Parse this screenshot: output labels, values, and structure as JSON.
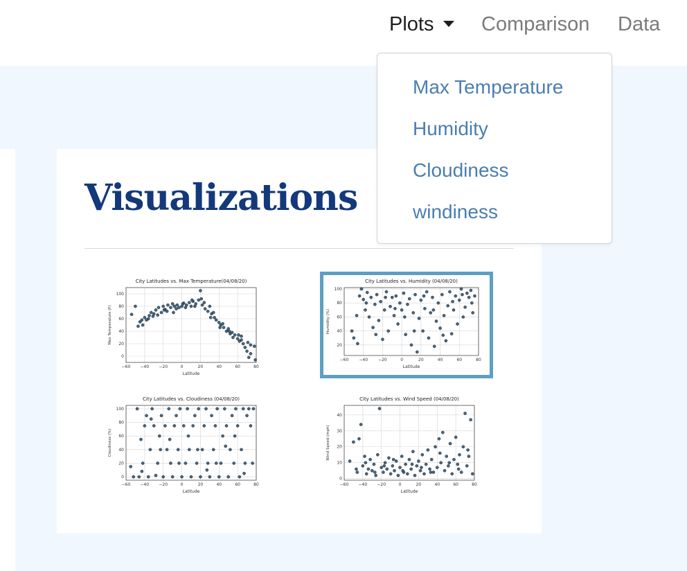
{
  "navbar": {
    "plots_label": "Plots",
    "comparison_label": "Comparison",
    "data_label": "Data"
  },
  "dropdown": {
    "items": [
      "Max Temperature",
      "Humidity",
      "Cloudiness",
      "windiness"
    ]
  },
  "main": {
    "title": "Visualizations"
  },
  "colors": {
    "title": "#14397a",
    "link": "#4a7eb0",
    "highlight": "#5d9fc4",
    "background": "#f1f7fe",
    "marker": "#2f5676"
  },
  "chart_data": [
    {
      "type": "scatter",
      "title": "City Latitudes vs. Max Temperature(04/08/20)",
      "xlabel": "Latitude",
      "ylabel": "Max Temperature (F)",
      "xlim": [
        -60,
        80
      ],
      "ylim": [
        -10,
        110
      ],
      "xticks": [
        -60,
        -40,
        -20,
        0,
        20,
        40,
        60,
        80
      ],
      "yticks": [
        0,
        20,
        40,
        60,
        80,
        100
      ],
      "grid": true,
      "points": [
        [
          -54,
          67
        ],
        [
          -50,
          80
        ],
        [
          -45,
          55
        ],
        [
          -42,
          50
        ],
        [
          -40,
          62
        ],
        [
          -38,
          58
        ],
        [
          -35,
          65
        ],
        [
          -33,
          70
        ],
        [
          -30,
          68
        ],
        [
          -28,
          74
        ],
        [
          -25,
          78
        ],
        [
          -22,
          70
        ],
        [
          -20,
          80
        ],
        [
          -18,
          75
        ],
        [
          -15,
          82
        ],
        [
          -12,
          78
        ],
        [
          -10,
          84
        ],
        [
          -8,
          80
        ],
        [
          -5,
          82
        ],
        [
          -3,
          78
        ],
        [
          0,
          80
        ],
        [
          2,
          85
        ],
        [
          5,
          82
        ],
        [
          8,
          86
        ],
        [
          10,
          80
        ],
        [
          12,
          88
        ],
        [
          15,
          84
        ],
        [
          18,
          90
        ],
        [
          20,
          105
        ],
        [
          22,
          82
        ],
        [
          25,
          76
        ],
        [
          28,
          72
        ],
        [
          30,
          80
        ],
        [
          32,
          68
        ],
        [
          35,
          62
        ],
        [
          37,
          58
        ],
        [
          40,
          54
        ],
        [
          42,
          50
        ],
        [
          45,
          46
        ],
        [
          48,
          40
        ],
        [
          50,
          44
        ],
        [
          52,
          36
        ],
        [
          55,
          30
        ],
        [
          57,
          34
        ],
        [
          60,
          28
        ],
        [
          62,
          24
        ],
        [
          64,
          32
        ],
        [
          66,
          20
        ],
        [
          68,
          14
        ],
        [
          70,
          8
        ],
        [
          72,
          -2
        ],
        [
          74,
          4
        ],
        [
          78,
          16
        ],
        [
          -47,
          48
        ],
        [
          -36,
          60
        ],
        [
          -26,
          66
        ],
        [
          -16,
          72
        ],
        [
          -6,
          76
        ],
        [
          4,
          78
        ],
        [
          14,
          80
        ],
        [
          24,
          86
        ],
        [
          34,
          70
        ],
        [
          44,
          52
        ],
        [
          54,
          38
        ],
        [
          64,
          26
        ],
        [
          74,
          18
        ],
        [
          -43,
          58
        ],
        [
          -31,
          64
        ],
        [
          -19,
          74
        ],
        [
          -9,
          70
        ],
        [
          1,
          84
        ],
        [
          11,
          90
        ],
        [
          21,
          92
        ],
        [
          31,
          62
        ],
        [
          41,
          46
        ],
        [
          51,
          40
        ],
        [
          61,
          34
        ],
        [
          71,
          22
        ],
        [
          79,
          -6
        ]
      ]
    },
    {
      "type": "scatter",
      "title": "City Latitudes vs. Humidity (04/08/20)",
      "xlabel": "Latitude",
      "ylabel": "Humidity (%)",
      "xlim": [
        -60,
        80
      ],
      "ylim": [
        5,
        102
      ],
      "xticks": [
        -60,
        -40,
        -20,
        0,
        20,
        40,
        60,
        80
      ],
      "yticks": [
        20,
        40,
        60,
        80,
        100
      ],
      "grid": true,
      "points": [
        [
          -52,
          40
        ],
        [
          -50,
          30
        ],
        [
          -46,
          22
        ],
        [
          -44,
          90
        ],
        [
          -42,
          100
        ],
        [
          -40,
          85
        ],
        [
          -38,
          70
        ],
        [
          -36,
          95
        ],
        [
          -34,
          60
        ],
        [
          -32,
          88
        ],
        [
          -30,
          45
        ],
        [
          -28,
          78
        ],
        [
          -26,
          92
        ],
        [
          -24,
          55
        ],
        [
          -22,
          82
        ],
        [
          -20,
          28
        ],
        [
          -18,
          70
        ],
        [
          -16,
          96
        ],
        [
          -14,
          40
        ],
        [
          -12,
          75
        ],
        [
          -10,
          88
        ],
        [
          -8,
          62
        ],
        [
          -6,
          90
        ],
        [
          -4,
          50
        ],
        [
          -2,
          80
        ],
        [
          0,
          70
        ],
        [
          2,
          94
        ],
        [
          4,
          35
        ],
        [
          6,
          78
        ],
        [
          8,
          86
        ],
        [
          10,
          20
        ],
        [
          12,
          66
        ],
        [
          14,
          92
        ],
        [
          16,
          10
        ],
        [
          18,
          58
        ],
        [
          20,
          84
        ],
        [
          22,
          40
        ],
        [
          24,
          72
        ],
        [
          26,
          96
        ],
        [
          28,
          30
        ],
        [
          30,
          66
        ],
        [
          32,
          88
        ],
        [
          34,
          18
        ],
        [
          36,
          54
        ],
        [
          38,
          80
        ],
        [
          40,
          44
        ],
        [
          42,
          92
        ],
        [
          44,
          62
        ],
        [
          46,
          26
        ],
        [
          48,
          76
        ],
        [
          50,
          96
        ],
        [
          52,
          36
        ],
        [
          54,
          70
        ],
        [
          56,
          90
        ],
        [
          58,
          50
        ],
        [
          60,
          84
        ],
        [
          62,
          100
        ],
        [
          64,
          60
        ],
        [
          66,
          74
        ],
        [
          68,
          94
        ],
        [
          70,
          88
        ],
        [
          72,
          98
        ],
        [
          74,
          66
        ],
        [
          76,
          90
        ],
        [
          -47,
          62
        ],
        [
          -37,
          80
        ],
        [
          -27,
          35
        ],
        [
          -17,
          88
        ],
        [
          -7,
          72
        ],
        [
          3,
          60
        ],
        [
          13,
          40
        ],
        [
          23,
          90
        ],
        [
          33,
          70
        ],
        [
          43,
          34
        ],
        [
          53,
          82
        ],
        [
          63,
          92
        ],
        [
          73,
          80
        ]
      ]
    },
    {
      "type": "scatter",
      "title": "City Latitudes vs. Cloudiness (04/08/20)",
      "xlabel": "Latitude",
      "ylabel": "Cloudiness (%)",
      "xlim": [
        -60,
        80
      ],
      "ylim": [
        -5,
        105
      ],
      "xticks": [
        -60,
        -40,
        -20,
        0,
        20,
        40,
        60,
        80
      ],
      "yticks": [
        0,
        20,
        40,
        60,
        80,
        100
      ],
      "grid": true,
      "points": [
        [
          -55,
          15
        ],
        [
          -52,
          0
        ],
        [
          -48,
          100
        ],
        [
          -46,
          0
        ],
        [
          -44,
          55
        ],
        [
          -42,
          20
        ],
        [
          -40,
          75
        ],
        [
          -38,
          90
        ],
        [
          -36,
          0
        ],
        [
          -34,
          40
        ],
        [
          -32,
          100
        ],
        [
          -30,
          75
        ],
        [
          -28,
          2
        ],
        [
          -26,
          20
        ],
        [
          -24,
          60
        ],
        [
          -22,
          90
        ],
        [
          -20,
          0
        ],
        [
          -18,
          75
        ],
        [
          -16,
          40
        ],
        [
          -14,
          100
        ],
        [
          -12,
          20
        ],
        [
          -10,
          0
        ],
        [
          -8,
          75
        ],
        [
          -6,
          90
        ],
        [
          -4,
          40
        ],
        [
          -2,
          100
        ],
        [
          0,
          0
        ],
        [
          2,
          75
        ],
        [
          4,
          20
        ],
        [
          6,
          100
        ],
        [
          8,
          40
        ],
        [
          10,
          0
        ],
        [
          12,
          75
        ],
        [
          14,
          90
        ],
        [
          16,
          20
        ],
        [
          18,
          100
        ],
        [
          20,
          0
        ],
        [
          22,
          40
        ],
        [
          24,
          75
        ],
        [
          26,
          100
        ],
        [
          28,
          20
        ],
        [
          30,
          0
        ],
        [
          32,
          90
        ],
        [
          34,
          40
        ],
        [
          36,
          75
        ],
        [
          38,
          100
        ],
        [
          40,
          0
        ],
        [
          42,
          20
        ],
        [
          44,
          60
        ],
        [
          46,
          100
        ],
        [
          48,
          75
        ],
        [
          50,
          0
        ],
        [
          52,
          40
        ],
        [
          54,
          90
        ],
        [
          56,
          20
        ],
        [
          58,
          100
        ],
        [
          60,
          75
        ],
        [
          62,
          0
        ],
        [
          64,
          40
        ],
        [
          66,
          100
        ],
        [
          68,
          20
        ],
        [
          70,
          90
        ],
        [
          72,
          100
        ],
        [
          74,
          75
        ],
        [
          76,
          20
        ],
        [
          -43,
          8
        ],
        [
          -33,
          85
        ],
        [
          -23,
          40
        ],
        [
          -13,
          55
        ],
        [
          -3,
          20
        ],
        [
          7,
          60
        ],
        [
          17,
          40
        ],
        [
          27,
          10
        ],
        [
          37,
          20
        ],
        [
          47,
          45
        ],
        [
          57,
          60
        ],
        [
          67,
          5
        ],
        [
          77,
          100
        ]
      ]
    },
    {
      "type": "scatter",
      "title": "City Latitudes vs. Wind Speed (04/08/20)",
      "xlabel": "Latitude",
      "ylabel": "Wind Speed (mph)",
      "xlim": [
        -60,
        80
      ],
      "ylim": [
        -1,
        46
      ],
      "xticks": [
        -60,
        -40,
        -20,
        0,
        20,
        40,
        60,
        80
      ],
      "yticks": [
        0,
        10,
        20,
        30,
        40
      ],
      "grid": true,
      "points": [
        [
          -54,
          11
        ],
        [
          -50,
          23
        ],
        [
          -46,
          4
        ],
        [
          -44,
          25
        ],
        [
          -42,
          34
        ],
        [
          -40,
          8
        ],
        [
          -38,
          14
        ],
        [
          -36,
          3
        ],
        [
          -34,
          6
        ],
        [
          -32,
          12
        ],
        [
          -30,
          5
        ],
        [
          -28,
          9
        ],
        [
          -26,
          2
        ],
        [
          -24,
          15
        ],
        [
          -22,
          44
        ],
        [
          -20,
          7
        ],
        [
          -18,
          4
        ],
        [
          -16,
          10
        ],
        [
          -14,
          6
        ],
        [
          -12,
          13
        ],
        [
          -10,
          3
        ],
        [
          -8,
          8
        ],
        [
          -6,
          5
        ],
        [
          -4,
          11
        ],
        [
          -2,
          2
        ],
        [
          0,
          7
        ],
        [
          2,
          14
        ],
        [
          4,
          4
        ],
        [
          6,
          9
        ],
        [
          8,
          3
        ],
        [
          10,
          12
        ],
        [
          12,
          6
        ],
        [
          14,
          17
        ],
        [
          16,
          2
        ],
        [
          18,
          8
        ],
        [
          20,
          11
        ],
        [
          22,
          5
        ],
        [
          24,
          15
        ],
        [
          26,
          3
        ],
        [
          28,
          9
        ],
        [
          30,
          18
        ],
        [
          32,
          6
        ],
        [
          34,
          12
        ],
        [
          36,
          4
        ],
        [
          38,
          20
        ],
        [
          40,
          7
        ],
        [
          42,
          25
        ],
        [
          44,
          10
        ],
        [
          46,
          29
        ],
        [
          48,
          5
        ],
        [
          50,
          14
        ],
        [
          52,
          8
        ],
        [
          54,
          22
        ],
        [
          56,
          3
        ],
        [
          58,
          12
        ],
        [
          60,
          26
        ],
        [
          62,
          9
        ],
        [
          64,
          15
        ],
        [
          66,
          4
        ],
        [
          68,
          20
        ],
        [
          70,
          41
        ],
        [
          72,
          8
        ],
        [
          74,
          14
        ],
        [
          76,
          37
        ],
        [
          78,
          3
        ],
        [
          -47,
          6
        ],
        [
          -37,
          10
        ],
        [
          -27,
          4
        ],
        [
          -17,
          8
        ],
        [
          -7,
          12
        ],
        [
          3,
          5
        ],
        [
          13,
          9
        ],
        [
          23,
          7
        ],
        [
          33,
          4
        ],
        [
          43,
          16
        ],
        [
          53,
          10
        ],
        [
          63,
          6
        ],
        [
          73,
          18
        ]
      ]
    }
  ]
}
